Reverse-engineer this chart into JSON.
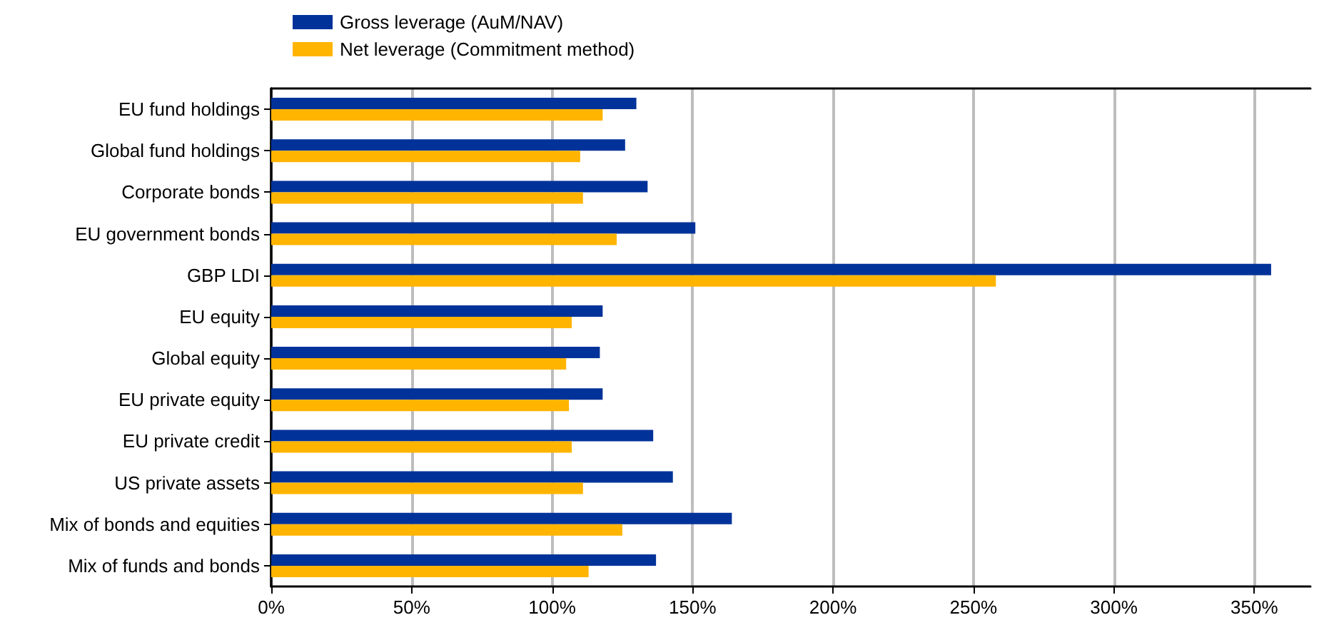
{
  "chart_data": {
    "type": "bar",
    "orientation": "horizontal",
    "categories": [
      "EU fund holdings",
      "Global fund holdings",
      "Corporate bonds",
      "EU government bonds",
      "GBP LDI",
      "EU equity",
      "Global equity",
      "EU private equity",
      "EU private credit",
      "US private assets",
      "Mix of bonds and equities",
      "Mix of funds and bonds"
    ],
    "series": [
      {
        "name": "Gross leverage (AuM/NAV)",
        "color": "#003299",
        "values": [
          130,
          126,
          134,
          151,
          356,
          118,
          117,
          118,
          136,
          143,
          164,
          137
        ]
      },
      {
        "name": "Net leverage (Commitment method)",
        "color": "#ffb400",
        "values": [
          118,
          110,
          111,
          123,
          258,
          107,
          105,
          106,
          107,
          111,
          125,
          113
        ]
      }
    ],
    "xlim": [
      0,
      370
    ],
    "xticks": [
      {
        "value": 0,
        "label": "0%"
      },
      {
        "value": 50,
        "label": "50%"
      },
      {
        "value": 100,
        "label": "100%"
      },
      {
        "value": 150,
        "label": "150%"
      },
      {
        "value": 200,
        "label": "200%"
      },
      {
        "value": 250,
        "label": "250%"
      },
      {
        "value": 300,
        "label": "300%"
      },
      {
        "value": 350,
        "label": "350%"
      }
    ],
    "grid": "x",
    "legend": "top left"
  }
}
